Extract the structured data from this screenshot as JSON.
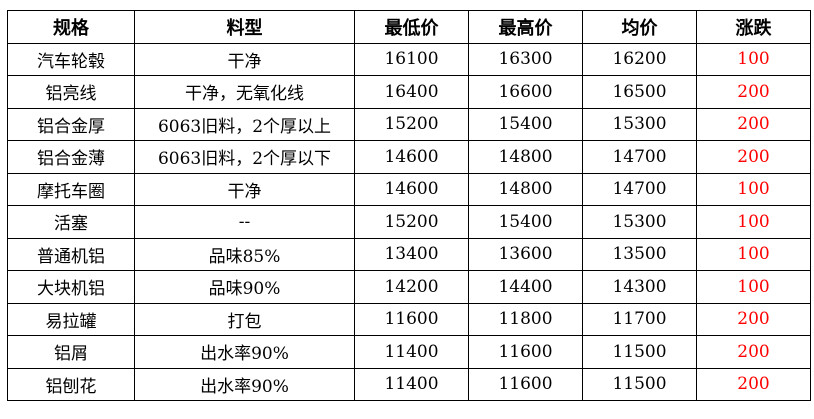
{
  "headers": [
    "规格",
    "料型",
    "最低价",
    "最高价",
    "均价",
    "涨跌"
  ],
  "change_color": "#ff0000",
  "rows": [
    [
      "汽车轮毂",
      "干净",
      "16100",
      "16300",
      "16200",
      "100"
    ],
    [
      "铝亮线",
      "干净，无氧化线",
      "16400",
      "16600",
      "16500",
      "200"
    ],
    [
      "铝合金厚",
      "6063旧料，2个厚以上",
      "15200",
      "15400",
      "15300",
      "200"
    ],
    [
      "铝合金薄",
      "6063旧料，2个厚以下",
      "14600",
      "14800",
      "14700",
      "200"
    ],
    [
      "摩托车圈",
      "干净",
      "14600",
      "14800",
      "14700",
      "100"
    ],
    [
      "活塞",
      "--",
      "15200",
      "15400",
      "15300",
      "100"
    ],
    [
      "普通机铝",
      "品味85%",
      "13400",
      "13600",
      "13500",
      "100"
    ],
    [
      "大块机铝",
      "品味90%",
      "14200",
      "14400",
      "14300",
      "100"
    ],
    [
      "易拉罐",
      "打包",
      "11600",
      "11800",
      "11700",
      "200"
    ],
    [
      "铝屑",
      "出水率90%",
      "11400",
      "11600",
      "11500",
      "200"
    ],
    [
      "铝刨花",
      "出水率90%",
      "11400",
      "11600",
      "11500",
      "200"
    ]
  ]
}
